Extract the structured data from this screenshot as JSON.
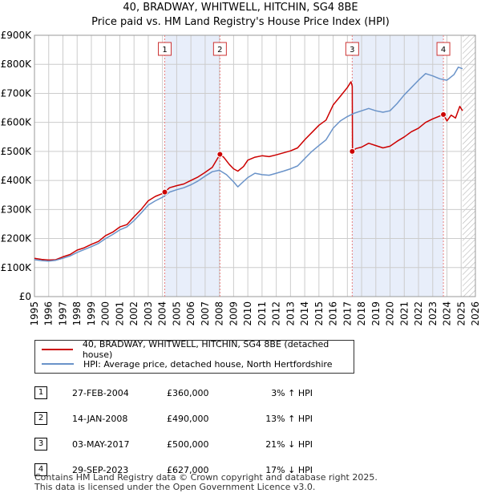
{
  "title": "40, BRADWAY, WHITWELL, HITCHIN, SG4 8BE",
  "subtitle": "Price paid vs. HM Land Registry's House Price Index (HPI)",
  "colors": {
    "property": "#cc0000",
    "hpi": "#6a93c9",
    "shade": "#e8eefa",
    "grid": "#cccccc",
    "vline": "#e88080"
  },
  "chart_data": {
    "type": "line",
    "title": "40, BRADWAY, WHITWELL, HITCHIN, SG4 8BE",
    "xlim": [
      1995,
      2026
    ],
    "ylim": [
      0,
      900000
    ],
    "xticks": [
      "1995",
      "1996",
      "1997",
      "1998",
      "1999",
      "2000",
      "2001",
      "2002",
      "2003",
      "2004",
      "2005",
      "2006",
      "2007",
      "2008",
      "2009",
      "2010",
      "2011",
      "2012",
      "2013",
      "2014",
      "2015",
      "2016",
      "2017",
      "2018",
      "2019",
      "2020",
      "2021",
      "2022",
      "2023",
      "2024",
      "2025",
      "2026"
    ],
    "yticks": [
      {
        "value": 0,
        "label": "£0"
      },
      {
        "value": 100000,
        "label": "£100K"
      },
      {
        "value": 200000,
        "label": "£200K"
      },
      {
        "value": 300000,
        "label": "£300K"
      },
      {
        "value": 400000,
        "label": "£400K"
      },
      {
        "value": 500000,
        "label": "£500K"
      },
      {
        "value": 600000,
        "label": "£600K"
      },
      {
        "value": 700000,
        "label": "£700K"
      },
      {
        "value": 800000,
        "label": "£800K"
      },
      {
        "value": 900000,
        "label": "£900K"
      }
    ],
    "shaded_ranges": [
      [
        2004.16,
        2008.04
      ],
      [
        2017.34,
        2023.75
      ]
    ],
    "future_from": 2025.1,
    "series": [
      {
        "name": "40, BRADWAY, WHITWELL, HITCHIN, SG4 8BE (detached house)",
        "key": "property",
        "points": [
          [
            1995,
            132000
          ],
          [
            1995.5,
            128000
          ],
          [
            1996,
            126000
          ],
          [
            1996.5,
            127000
          ],
          [
            1997,
            137000
          ],
          [
            1997.5,
            145000
          ],
          [
            1998,
            160000
          ],
          [
            1998.5,
            168000
          ],
          [
            1999,
            180000
          ],
          [
            1999.5,
            190000
          ],
          [
            2000,
            210000
          ],
          [
            2000.5,
            222000
          ],
          [
            2001,
            240000
          ],
          [
            2001.5,
            248000
          ],
          [
            2002,
            275000
          ],
          [
            2002.5,
            300000
          ],
          [
            2003,
            330000
          ],
          [
            2003.5,
            345000
          ],
          [
            2004,
            355000
          ],
          [
            2004.16,
            360000
          ],
          [
            2004.5,
            375000
          ],
          [
            2005,
            382000
          ],
          [
            2005.5,
            388000
          ],
          [
            2006,
            400000
          ],
          [
            2006.5,
            412000
          ],
          [
            2007,
            428000
          ],
          [
            2007.5,
            445000
          ],
          [
            2008.04,
            490000
          ],
          [
            2008.3,
            480000
          ],
          [
            2008.7,
            455000
          ],
          [
            2009,
            440000
          ],
          [
            2009.3,
            432000
          ],
          [
            2009.7,
            448000
          ],
          [
            2010,
            470000
          ],
          [
            2010.5,
            480000
          ],
          [
            2011,
            485000
          ],
          [
            2011.5,
            482000
          ],
          [
            2012,
            488000
          ],
          [
            2012.5,
            495000
          ],
          [
            2013,
            502000
          ],
          [
            2013.5,
            512000
          ],
          [
            2014,
            540000
          ],
          [
            2014.5,
            565000
          ],
          [
            2015,
            590000
          ],
          [
            2015.5,
            608000
          ],
          [
            2016,
            660000
          ],
          [
            2016.5,
            690000
          ],
          [
            2017,
            720000
          ],
          [
            2017.25,
            740000
          ],
          [
            2017.34,
            725000
          ],
          [
            2017.36,
            500000
          ],
          [
            2017.6,
            510000
          ],
          [
            2018,
            515000
          ],
          [
            2018.5,
            528000
          ],
          [
            2019,
            520000
          ],
          [
            2019.5,
            512000
          ],
          [
            2020,
            518000
          ],
          [
            2020.5,
            535000
          ],
          [
            2021,
            550000
          ],
          [
            2021.5,
            568000
          ],
          [
            2022,
            580000
          ],
          [
            2022.5,
            600000
          ],
          [
            2023,
            612000
          ],
          [
            2023.4,
            620000
          ],
          [
            2023.75,
            627000
          ],
          [
            2024,
            605000
          ],
          [
            2024.3,
            625000
          ],
          [
            2024.6,
            615000
          ],
          [
            2024.9,
            655000
          ],
          [
            2025.1,
            640000
          ]
        ]
      },
      {
        "name": "HPI: Average price, detached house, North Hertfordshire",
        "key": "hpi",
        "points": [
          [
            1995,
            127000
          ],
          [
            1995.5,
            124000
          ],
          [
            1996,
            122000
          ],
          [
            1996.5,
            125000
          ],
          [
            1997,
            132000
          ],
          [
            1997.5,
            140000
          ],
          [
            1998,
            152000
          ],
          [
            1998.5,
            162000
          ],
          [
            1999,
            172000
          ],
          [
            1999.5,
            183000
          ],
          [
            2000,
            200000
          ],
          [
            2000.5,
            214000
          ],
          [
            2001,
            230000
          ],
          [
            2001.5,
            240000
          ],
          [
            2002,
            262000
          ],
          [
            2002.5,
            288000
          ],
          [
            2003,
            315000
          ],
          [
            2003.5,
            330000
          ],
          [
            2004,
            342000
          ],
          [
            2004.5,
            360000
          ],
          [
            2005,
            368000
          ],
          [
            2005.5,
            375000
          ],
          [
            2006,
            385000
          ],
          [
            2006.5,
            398000
          ],
          [
            2007,
            415000
          ],
          [
            2007.5,
            430000
          ],
          [
            2008,
            435000
          ],
          [
            2008.5,
            420000
          ],
          [
            2009,
            395000
          ],
          [
            2009.3,
            378000
          ],
          [
            2009.6,
            392000
          ],
          [
            2010,
            410000
          ],
          [
            2010.5,
            425000
          ],
          [
            2011,
            420000
          ],
          [
            2011.5,
            418000
          ],
          [
            2012,
            425000
          ],
          [
            2012.5,
            432000
          ],
          [
            2013,
            440000
          ],
          [
            2013.5,
            450000
          ],
          [
            2014,
            475000
          ],
          [
            2014.5,
            500000
          ],
          [
            2015,
            520000
          ],
          [
            2015.5,
            540000
          ],
          [
            2016,
            580000
          ],
          [
            2016.5,
            605000
          ],
          [
            2017,
            620000
          ],
          [
            2017.5,
            632000
          ],
          [
            2018,
            640000
          ],
          [
            2018.5,
            648000
          ],
          [
            2019,
            640000
          ],
          [
            2019.5,
            635000
          ],
          [
            2020,
            640000
          ],
          [
            2020.5,
            665000
          ],
          [
            2021,
            695000
          ],
          [
            2021.5,
            720000
          ],
          [
            2022,
            745000
          ],
          [
            2022.5,
            768000
          ],
          [
            2023,
            760000
          ],
          [
            2023.5,
            750000
          ],
          [
            2024,
            745000
          ],
          [
            2024.5,
            765000
          ],
          [
            2024.8,
            790000
          ],
          [
            2025.1,
            785000
          ]
        ]
      }
    ],
    "sales": [
      {
        "label": "1",
        "x": 2004.16,
        "y": 360000
      },
      {
        "label": "2",
        "x": 2008.04,
        "y": 490000
      },
      {
        "label": "3",
        "x": 2017.34,
        "y": 500000
      },
      {
        "label": "4",
        "x": 2023.75,
        "y": 627000
      }
    ]
  },
  "legend": {
    "property_label": "40, BRADWAY, WHITWELL, HITCHIN, SG4 8BE (detached house)",
    "hpi_label": "HPI: Average price, detached house, North Hertfordshire"
  },
  "transactions": [
    {
      "num": "1",
      "date": "27-FEB-2004",
      "price": "£360,000",
      "pct": "3% ↑ HPI"
    },
    {
      "num": "2",
      "date": "14-JAN-2008",
      "price": "£490,000",
      "pct": "13% ↑ HPI"
    },
    {
      "num": "3",
      "date": "03-MAY-2017",
      "price": "£500,000",
      "pct": "21% ↓ HPI"
    },
    {
      "num": "4",
      "date": "29-SEP-2023",
      "price": "£627,000",
      "pct": "17% ↓ HPI"
    }
  ],
  "footer": {
    "line1": "Contains HM Land Registry data © Crown copyright and database right 2025.",
    "line2": "This data is licensed under the Open Government Licence v3.0."
  }
}
